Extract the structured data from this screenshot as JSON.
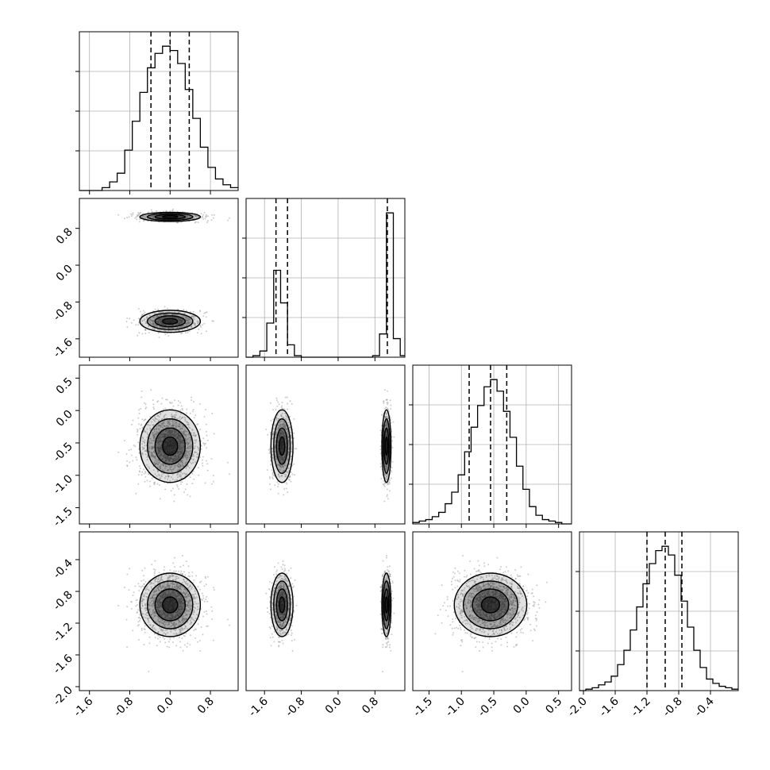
{
  "chart_data": {
    "type": "corner",
    "title": "",
    "grid": true,
    "colors": {
      "line": "#000000",
      "grid": "#b0b0b0",
      "scatter": "#999999",
      "density": "#000000"
    },
    "parameters": [
      {
        "range": [
          -1.8,
          1.35
        ],
        "ticks": [
          "-1.6",
          "-0.8",
          "0.0",
          "0.8"
        ],
        "quantiles": [
          -0.38,
          0.0,
          0.38
        ],
        "histogram": {
          "bin_edges": [
            -1.8,
            -1.65,
            -1.5,
            -1.35,
            -1.2,
            -1.05,
            -0.9,
            -0.75,
            -0.6,
            -0.45,
            -0.3,
            -0.15,
            0.0,
            0.15,
            0.3,
            0.45,
            0.6,
            0.75,
            0.9,
            1.05,
            1.2,
            1.35
          ],
          "counts": [
            0,
            0,
            0,
            2,
            6,
            12,
            28,
            48,
            68,
            85,
            95,
            100,
            97,
            88,
            70,
            50,
            30,
            16,
            8,
            4,
            2
          ]
        },
        "mode": {
          "type": "normal",
          "mu": 0.0,
          "sigma": 0.3
        }
      },
      {
        "range": [
          -2.0,
          1.45
        ],
        "ticks": [
          "-1.6",
          "-0.8",
          "0.0",
          "0.8"
        ],
        "quantiles": [
          -1.35,
          -1.1,
          1.07
        ],
        "histogram": {
          "bin_edges": [
            -2.0,
            -1.85,
            -1.7,
            -1.55,
            -1.4,
            -1.25,
            -1.1,
            -0.95,
            -0.8,
            -0.65,
            -0.5,
            -0.35,
            -0.2,
            -0.05,
            0.1,
            0.25,
            0.4,
            0.55,
            0.6,
            0.75,
            0.9,
            1.05,
            1.2,
            1.35,
            1.45
          ],
          "counts": [
            0,
            1,
            4,
            22,
            56,
            35,
            8,
            1,
            0,
            0,
            0,
            0,
            0,
            0,
            0,
            0,
            0,
            0,
            0,
            1,
            15,
            93,
            12,
            1
          ]
        },
        "modes": [
          {
            "mu": -1.22,
            "sigma": 0.12,
            "weight": 0.5
          },
          {
            "mu": 1.05,
            "sigma": 0.05,
            "weight": 0.5
          }
        ]
      },
      {
        "range": [
          -1.75,
          0.7
        ],
        "ticks": [
          "-1.5",
          "-1.0",
          "-0.5",
          "0.0",
          "0.5"
        ],
        "quantiles": [
          -0.88,
          -0.55,
          -0.3
        ],
        "histogram": {
          "bin_edges": [
            -1.75,
            -1.65,
            -1.55,
            -1.45,
            -1.35,
            -1.25,
            -1.15,
            -1.05,
            -0.95,
            -0.85,
            -0.75,
            -0.65,
            -0.55,
            -0.45,
            -0.35,
            -0.25,
            -0.15,
            -0.05,
            0.05,
            0.15,
            0.25,
            0.35,
            0.45,
            0.55,
            0.7
          ],
          "counts": [
            1,
            2,
            3,
            5,
            8,
            14,
            22,
            34,
            50,
            67,
            82,
            95,
            100,
            92,
            78,
            60,
            40,
            24,
            12,
            6,
            3,
            2,
            1,
            0
          ]
        },
        "mode": {
          "type": "normal",
          "mu": -0.55,
          "sigma": 0.28
        }
      },
      {
        "range": [
          -2.05,
          -0.05
        ],
        "ticks": [
          "-2.0",
          "-1.6",
          "-1.2",
          "-0.8",
          "-0.4"
        ],
        "quantiles": [
          -1.2,
          -0.97,
          -0.76
        ],
        "histogram": {
          "bin_edges": [
            -2.05,
            -1.97,
            -1.89,
            -1.81,
            -1.73,
            -1.65,
            -1.57,
            -1.49,
            -1.41,
            -1.33,
            -1.25,
            -1.17,
            -1.09,
            -1.01,
            -0.93,
            -0.85,
            -0.77,
            -0.69,
            -0.61,
            -0.53,
            -0.45,
            -0.37,
            -0.29,
            -0.21,
            -0.13,
            -0.05
          ],
          "counts": [
            0,
            1,
            2,
            4,
            6,
            10,
            18,
            28,
            42,
            58,
            74,
            88,
            97,
            100,
            94,
            80,
            62,
            44,
            28,
            16,
            8,
            5,
            3,
            2,
            1
          ]
        },
        "mode": {
          "type": "normal",
          "mu": -0.97,
          "sigma": 0.2
        }
      }
    ]
  }
}
